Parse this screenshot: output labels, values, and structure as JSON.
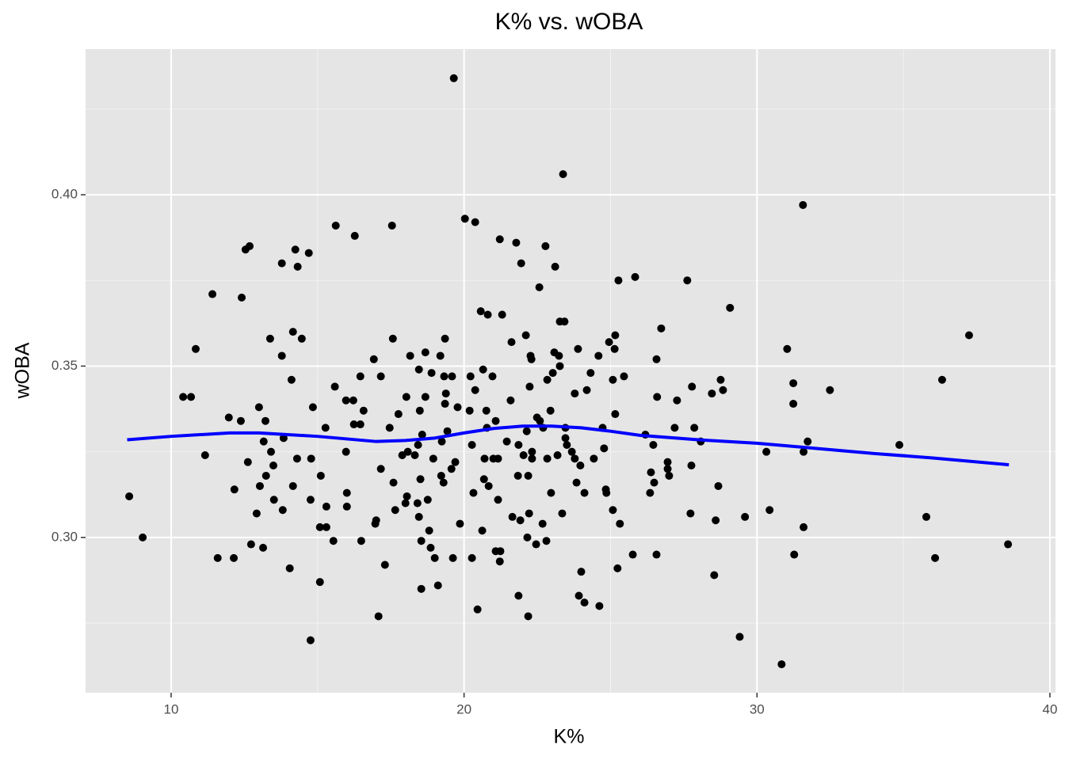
{
  "chart_data": {
    "type": "scatter",
    "title": "K% vs. wOBA",
    "x_label": "K%",
    "y_label": "wOBA",
    "xlim": [
      7.08,
      40.19
    ],
    "ylim": [
      0.2547,
      0.4425
    ],
    "xticks": [
      10,
      20,
      30,
      40
    ],
    "yticks": [
      {
        "value": 0.3,
        "label": "0.30"
      },
      0.35,
      {
        "value": 0.4,
        "label": "0.40"
      }
    ],
    "grid": true,
    "color": "#000000",
    "x": [
      8.57,
      9.03,
      10.41,
      10.68,
      10.84,
      11.16,
      11.41,
      11.59,
      11.97,
      12.16,
      12.14,
      12.41,
      12.38,
      12.54,
      12.68,
      12.62,
      12.73,
      12.92,
      13.0,
      13.03,
      13.14,
      13.16,
      13.22,
      13.24,
      13.38,
      13.41,
      13.49,
      13.51,
      13.78,
      13.78,
      13.81,
      13.84,
      14.05,
      14.11,
      14.16,
      14.16,
      14.24,
      14.3,
      14.32,
      14.46,
      14.7,
      14.76,
      14.76,
      14.78,
      14.84,
      15.08,
      15.11,
      15.08,
      15.3,
      15.27,
      15.3,
      15.54,
      15.59,
      15.62,
      15.97,
      15.97,
      16.0,
      16.0,
      16.22,
      16.24,
      16.27,
      16.46,
      16.46,
      16.49,
      16.57,
      16.92,
      16.97,
      17.0,
      17.08,
      17.16,
      17.16,
      17.3,
      17.46,
      17.54,
      17.57,
      17.59,
      17.65,
      17.76,
      17.89,
      18.0,
      18.03,
      18.05,
      18.08,
      18.16,
      18.32,
      18.41,
      18.43,
      18.46,
      18.46,
      18.49,
      18.51,
      18.54,
      18.54,
      18.57,
      18.68,
      18.68,
      18.76,
      18.81,
      18.86,
      18.89,
      18.95,
      19.0,
      19.11,
      19.19,
      19.22,
      19.24,
      19.3,
      19.32,
      19.35,
      19.35,
      19.38,
      19.43,
      19.57,
      19.59,
      19.62,
      19.65,
      19.7,
      19.78,
      19.86,
      20.03,
      20.19,
      20.22,
      20.27,
      20.27,
      20.32,
      20.38,
      20.38,
      20.46,
      20.57,
      20.62,
      20.65,
      20.68,
      20.7,
      20.76,
      20.78,
      20.81,
      20.84,
      20.97,
      21.0,
      21.08,
      21.08,
      21.16,
      21.16,
      21.22,
      21.22,
      21.24,
      21.3,
      21.46,
      21.59,
      21.62,
      21.65,
      21.78,
      21.84,
      21.86,
      21.86,
      21.92,
      21.95,
      22.03,
      22.11,
      22.14,
      22.16,
      22.19,
      22.19,
      22.22,
      22.24,
      22.27,
      22.3,
      22.32,
      22.32,
      22.46,
      22.49,
      22.57,
      22.59,
      22.68,
      22.7,
      22.78,
      22.81,
      22.84,
      22.84,
      22.95,
      22.97,
      23.03,
      23.08,
      23.11,
      23.19,
      23.24,
      23.27,
      23.27,
      23.35,
      23.38,
      23.43,
      23.46,
      23.46,
      23.51,
      23.68,
      23.78,
      23.78,
      23.84,
      23.89,
      23.92,
      23.97,
      24.0,
      24.11,
      24.11,
      24.19,
      24.32,
      24.43,
      24.59,
      24.62,
      24.73,
      24.78,
      24.84,
      24.86,
      24.95,
      25.08,
      25.08,
      25.14,
      25.16,
      25.16,
      25.24,
      25.27,
      25.32,
      25.46,
      25.76,
      25.84,
      26.19,
      26.35,
      26.38,
      26.46,
      26.49,
      26.57,
      26.57,
      26.59,
      26.73,
      26.95,
      26.95,
      27.0,
      27.19,
      27.27,
      27.62,
      27.73,
      27.76,
      27.78,
      27.86,
      28.08,
      28.46,
      28.54,
      28.59,
      28.68,
      28.76,
      28.84,
      29.08,
      29.41,
      29.59,
      30.32,
      30.43,
      30.84,
      31.03,
      31.24,
      31.24,
      31.27,
      31.57,
      31.59,
      31.59,
      31.73,
      32.49,
      34.86,
      35.78,
      36.08,
      36.32,
      37.24,
      38.57
    ],
    "values": [
      0.312,
      0.3,
      0.341,
      0.341,
      0.355,
      0.324,
      0.371,
      0.294,
      0.335,
      0.314,
      0.294,
      0.37,
      0.334,
      0.384,
      0.385,
      0.322,
      0.298,
      0.307,
      0.338,
      0.315,
      0.297,
      0.328,
      0.334,
      0.318,
      0.358,
      0.325,
      0.321,
      0.311,
      0.38,
      0.353,
      0.308,
      0.329,
      0.291,
      0.346,
      0.36,
      0.315,
      0.384,
      0.323,
      0.379,
      0.358,
      0.383,
      0.27,
      0.311,
      0.323,
      0.338,
      0.287,
      0.318,
      0.303,
      0.303,
      0.332,
      0.309,
      0.299,
      0.344,
      0.391,
      0.34,
      0.325,
      0.313,
      0.309,
      0.34,
      0.333,
      0.388,
      0.347,
      0.333,
      0.299,
      0.337,
      0.352,
      0.304,
      0.305,
      0.277,
      0.347,
      0.32,
      0.292,
      0.332,
      0.391,
      0.358,
      0.316,
      0.308,
      0.336,
      0.324,
      0.31,
      0.341,
      0.312,
      0.325,
      0.353,
      0.324,
      0.31,
      0.327,
      0.349,
      0.306,
      0.337,
      0.317,
      0.299,
      0.285,
      0.33,
      0.354,
      0.341,
      0.311,
      0.302,
      0.297,
      0.348,
      0.323,
      0.294,
      0.286,
      0.353,
      0.318,
      0.328,
      0.316,
      0.347,
      0.358,
      0.339,
      0.342,
      0.331,
      0.32,
      0.347,
      0.294,
      0.434,
      0.322,
      0.338,
      0.304,
      0.393,
      0.337,
      0.347,
      0.294,
      0.327,
      0.313,
      0.392,
      0.343,
      0.279,
      0.366,
      0.302,
      0.349,
      0.317,
      0.323,
      0.337,
      0.332,
      0.365,
      0.315,
      0.347,
      0.323,
      0.334,
      0.296,
      0.311,
      0.323,
      0.293,
      0.387,
      0.296,
      0.365,
      0.328,
      0.34,
      0.357,
      0.306,
      0.386,
      0.318,
      0.283,
      0.327,
      0.305,
      0.38,
      0.324,
      0.359,
      0.331,
      0.3,
      0.318,
      0.277,
      0.307,
      0.344,
      0.353,
      0.352,
      0.323,
      0.325,
      0.298,
      0.335,
      0.373,
      0.334,
      0.304,
      0.332,
      0.385,
      0.299,
      0.323,
      0.346,
      0.337,
      0.313,
      0.348,
      0.354,
      0.379,
      0.324,
      0.353,
      0.35,
      0.363,
      0.307,
      0.406,
      0.363,
      0.332,
      0.329,
      0.327,
      0.325,
      0.342,
      0.323,
      0.316,
      0.355,
      0.283,
      0.321,
      0.29,
      0.313,
      0.281,
      0.343,
      0.348,
      0.323,
      0.353,
      0.28,
      0.332,
      0.326,
      0.314,
      0.313,
      0.357,
      0.308,
      0.346,
      0.355,
      0.359,
      0.336,
      0.291,
      0.375,
      0.304,
      0.347,
      0.295,
      0.376,
      0.33,
      0.313,
      0.319,
      0.327,
      0.316,
      0.352,
      0.295,
      0.341,
      0.361,
      0.322,
      0.32,
      0.318,
      0.332,
      0.34,
      0.375,
      0.307,
      0.321,
      0.344,
      0.332,
      0.328,
      0.342,
      0.289,
      0.305,
      0.315,
      0.346,
      0.343,
      0.367,
      0.271,
      0.306,
      0.325,
      0.308,
      0.263,
      0.355,
      0.345,
      0.339,
      0.295,
      0.397,
      0.325,
      0.303,
      0.328,
      0.343,
      0.327,
      0.306,
      0.294,
      0.346,
      0.359,
      0.298
    ],
    "smooth": {
      "color": "#0000ff",
      "x": [
        8.5,
        10,
        12,
        13,
        15,
        17,
        18,
        19,
        20,
        21,
        22,
        23,
        24,
        25,
        26,
        28,
        30,
        32,
        34,
        36,
        38.6
      ],
      "values": [
        0.3285,
        0.3295,
        0.3305,
        0.3305,
        0.3295,
        0.328,
        0.3283,
        0.329,
        0.3305,
        0.3318,
        0.3325,
        0.3325,
        0.332,
        0.331,
        0.3298,
        0.3285,
        0.3275,
        0.326,
        0.3245,
        0.3232,
        0.3212
      ]
    }
  }
}
